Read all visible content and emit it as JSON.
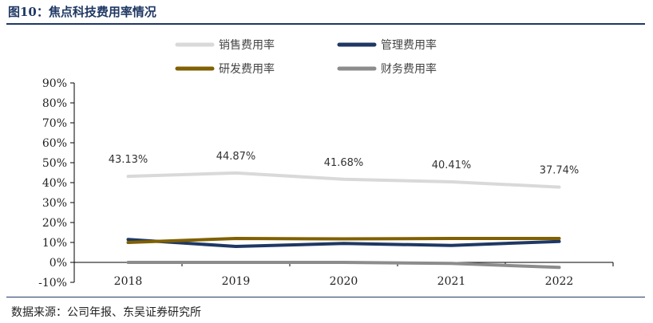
{
  "figure": {
    "title": "图10：焦点科技费用率情况",
    "source": "数据来源：公司年报、东吴证券研究所"
  },
  "chart_data": {
    "type": "line",
    "x": [
      "2018",
      "2019",
      "2020",
      "2021",
      "2022"
    ],
    "ylim": [
      -10,
      90
    ],
    "yticks": [
      -10,
      0,
      10,
      20,
      30,
      40,
      50,
      60,
      70,
      80,
      90
    ],
    "ytick_labels": [
      "-10%",
      "0%",
      "10%",
      "20%",
      "30%",
      "40%",
      "50%",
      "60%",
      "70%",
      "80%",
      "90%"
    ],
    "grid": false,
    "legend": "top",
    "series": [
      {
        "name": "销售费用率",
        "values": [
          43.13,
          44.87,
          41.68,
          40.41,
          37.74
        ],
        "color": "#d9d9d9",
        "labels": [
          "43.13%",
          "44.87%",
          "41.68%",
          "40.41%",
          "37.74%"
        ]
      },
      {
        "name": "管理费用率",
        "values": [
          11.5,
          8.0,
          9.5,
          8.5,
          10.5
        ],
        "color": "#1f3864"
      },
      {
        "name": "研发费用率",
        "values": [
          10.0,
          12.0,
          11.8,
          12.0,
          12.0
        ],
        "color": "#806000"
      },
      {
        "name": "财务费用率",
        "values": [
          0.0,
          0.0,
          0.0,
          -0.5,
          -2.5
        ],
        "color": "#8c8c8c"
      }
    ]
  }
}
